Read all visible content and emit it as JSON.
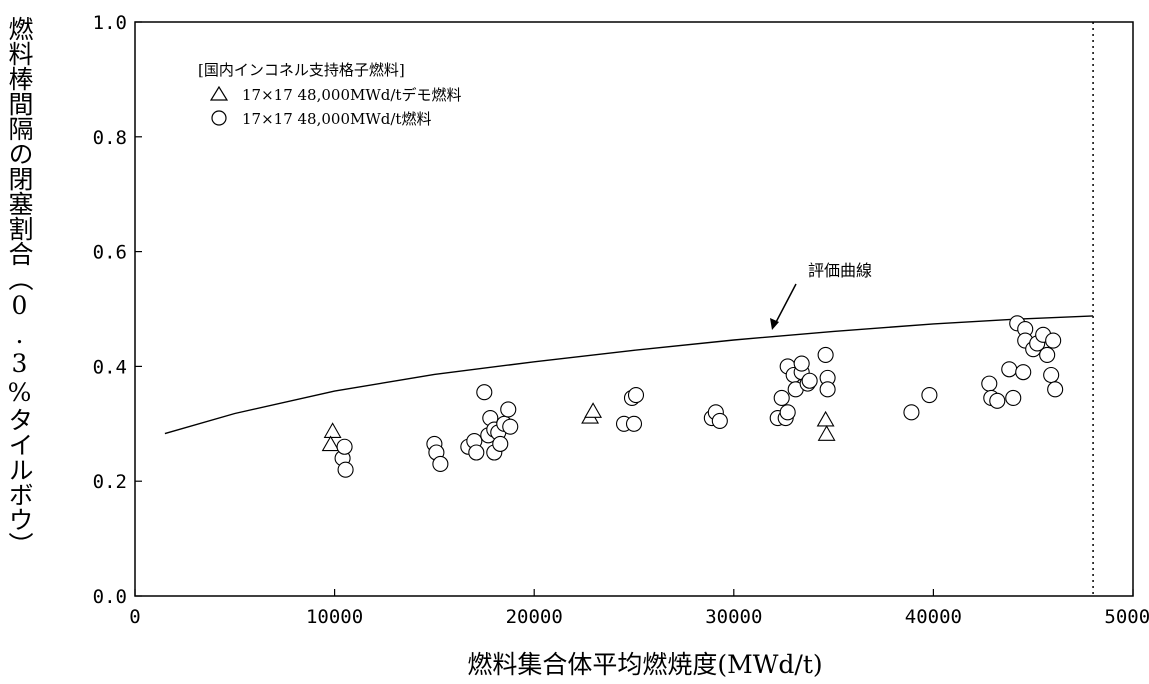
{
  "chart_data": {
    "type": "scatter",
    "title": "",
    "xlabel": "燃料集合体平均燃焼度(MWd/t)",
    "ylabel": "燃料棒間隔の閉塞割合（0.3%タイルボウ）",
    "xlim": [
      0,
      50000
    ],
    "ylim": [
      0.0,
      1.0
    ],
    "x_ticks": [
      "0",
      "10000",
      "20000",
      "30000",
      "40000",
      "50000"
    ],
    "y_ticks": [
      "0.0",
      "0.2",
      "0.4",
      "0.6",
      "0.8",
      "1.0"
    ],
    "grid": false,
    "legend_title": "[国内インコネル支持格子燃料]",
    "legend_position": "top-left",
    "series": [
      {
        "name": "17×17 48,000MWd/tデモ燃料",
        "marker": "triangle",
        "points": [
          [
            9900,
            0.285
          ],
          [
            9800,
            0.262
          ],
          [
            22800,
            0.31
          ],
          [
            22950,
            0.32
          ],
          [
            34600,
            0.305
          ],
          [
            34650,
            0.28
          ]
        ]
      },
      {
        "name": "17×17 48,000MWd/t燃料",
        "marker": "circle",
        "points": [
          [
            10400,
            0.24
          ],
          [
            10500,
            0.26
          ],
          [
            10550,
            0.22
          ],
          [
            15000,
            0.265
          ],
          [
            15100,
            0.25
          ],
          [
            15300,
            0.23
          ],
          [
            16700,
            0.26
          ],
          [
            17000,
            0.27
          ],
          [
            17100,
            0.25
          ],
          [
            17500,
            0.355
          ],
          [
            17700,
            0.28
          ],
          [
            17800,
            0.31
          ],
          [
            18000,
            0.29
          ],
          [
            18200,
            0.285
          ],
          [
            18000,
            0.25
          ],
          [
            18300,
            0.265
          ],
          [
            18500,
            0.3
          ],
          [
            18700,
            0.325
          ],
          [
            18800,
            0.295
          ],
          [
            24500,
            0.3
          ],
          [
            24900,
            0.345
          ],
          [
            25100,
            0.35
          ],
          [
            25000,
            0.3
          ],
          [
            28900,
            0.31
          ],
          [
            29100,
            0.32
          ],
          [
            29300,
            0.305
          ],
          [
            32200,
            0.31
          ],
          [
            32400,
            0.345
          ],
          [
            32600,
            0.31
          ],
          [
            32700,
            0.32
          ],
          [
            32700,
            0.4
          ],
          [
            33000,
            0.385
          ],
          [
            33100,
            0.36
          ],
          [
            33400,
            0.39
          ],
          [
            33400,
            0.405
          ],
          [
            33700,
            0.37
          ],
          [
            33800,
            0.375
          ],
          [
            34600,
            0.42
          ],
          [
            34700,
            0.38
          ],
          [
            34700,
            0.36
          ],
          [
            38900,
            0.32
          ],
          [
            39800,
            0.35
          ],
          [
            42800,
            0.37
          ],
          [
            42900,
            0.345
          ],
          [
            43200,
            0.34
          ],
          [
            43800,
            0.395
          ],
          [
            44000,
            0.345
          ],
          [
            44200,
            0.475
          ],
          [
            44500,
            0.39
          ],
          [
            44600,
            0.465
          ],
          [
            44600,
            0.445
          ],
          [
            45000,
            0.43
          ],
          [
            45200,
            0.44
          ],
          [
            45500,
            0.455
          ],
          [
            45700,
            0.42
          ],
          [
            45900,
            0.385
          ],
          [
            46000,
            0.445
          ],
          [
            46100,
            0.36
          ]
        ]
      }
    ],
    "evaluation_curve": {
      "label": "評価曲線",
      "points": [
        [
          1500,
          0.283
        ],
        [
          5000,
          0.318
        ],
        [
          10000,
          0.357
        ],
        [
          15000,
          0.386
        ],
        [
          20000,
          0.408
        ],
        [
          25000,
          0.428
        ],
        [
          30000,
          0.446
        ],
        [
          35000,
          0.461
        ],
        [
          40000,
          0.474
        ],
        [
          44000,
          0.482
        ],
        [
          48000,
          0.488
        ]
      ]
    },
    "limit_line": {
      "x": 48000,
      "style": "dotted"
    }
  }
}
